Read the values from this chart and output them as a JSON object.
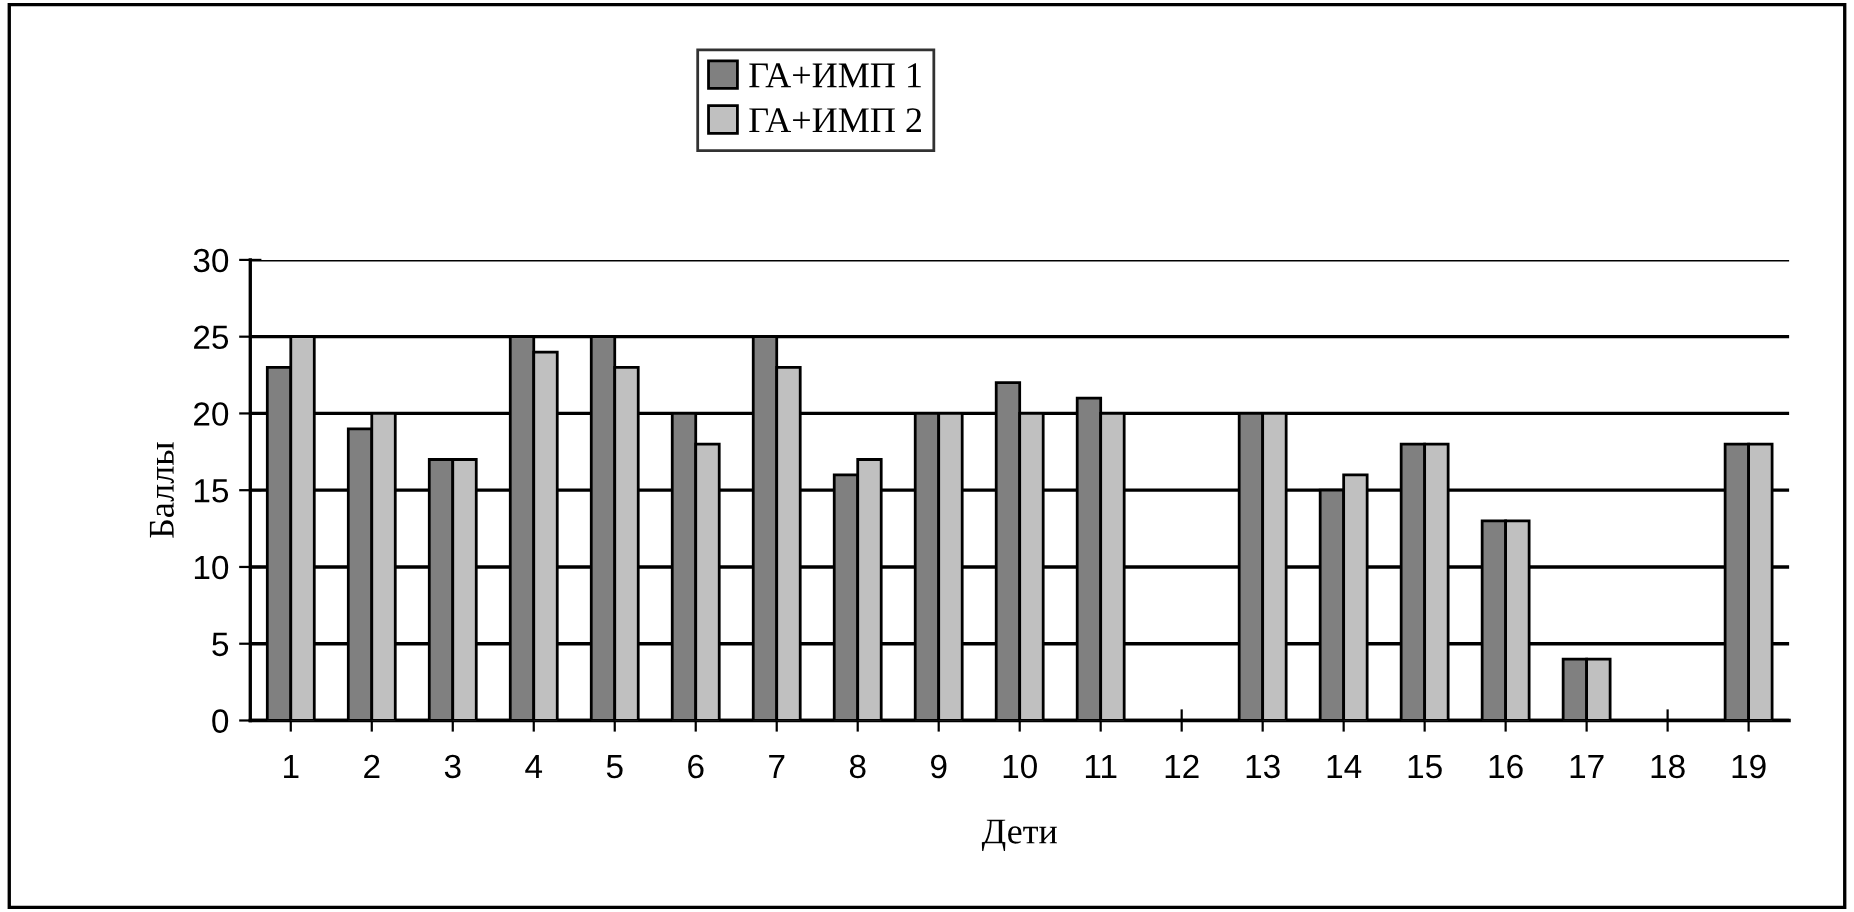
{
  "chart_data": {
    "type": "bar",
    "xlabel": "Дети",
    "ylabel": "Баллы",
    "categories": [
      "1",
      "2",
      "3",
      "4",
      "5",
      "6",
      "7",
      "8",
      "9",
      "10",
      "11",
      "12",
      "13",
      "14",
      "15",
      "16",
      "17",
      "18",
      "19"
    ],
    "series": [
      {
        "name": "ГА+ИМП 1",
        "color": "#808080",
        "values": [
          23,
          19,
          17,
          25,
          25,
          20,
          25,
          16,
          20,
          22,
          21,
          null,
          20,
          15,
          18,
          13,
          4,
          null,
          18
        ]
      },
      {
        "name": "ГА+ИМП 2",
        "color": "#c0c0c0",
        "values": [
          25,
          20,
          17,
          24,
          23,
          18,
          23,
          17,
          20,
          20,
          20,
          null,
          20,
          16,
          18,
          13,
          4,
          null,
          18
        ]
      }
    ],
    "ylim": [
      0,
      30
    ],
    "yticks": [
      0,
      5,
      10,
      15,
      20,
      25,
      30
    ],
    "grid": "y",
    "legend": "top"
  }
}
